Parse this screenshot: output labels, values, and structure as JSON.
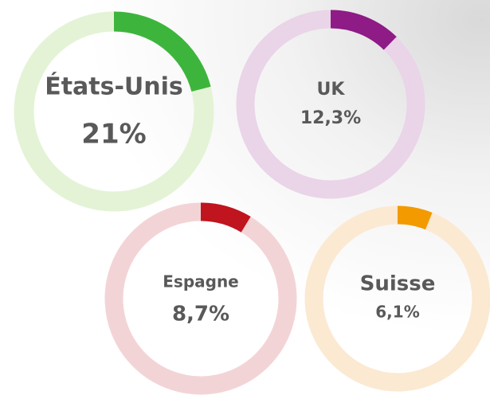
{
  "chart_data": [
    {
      "type": "donut",
      "title": "États-Unis",
      "values": [
        21
      ],
      "value_labels": [
        "21%"
      ],
      "color": "#3db53d",
      "track_color": "#e4f3d6"
    },
    {
      "type": "donut",
      "title": "UK",
      "values": [
        12.3
      ],
      "value_labels": [
        "12,3%"
      ],
      "color": "#8e1b86",
      "track_color": "#ead4e8"
    },
    {
      "type": "donut",
      "title": "Espagne",
      "values": [
        8.7
      ],
      "value_labels": [
        "8,7%"
      ],
      "color": "#c0141f",
      "track_color": "#f3d4d6"
    },
    {
      "type": "donut",
      "title": "Suisse",
      "values": [
        6.1
      ],
      "value_labels": [
        "6,1%"
      ],
      "color": "#f29a00",
      "track_color": "#fbe9d2"
    }
  ]
}
